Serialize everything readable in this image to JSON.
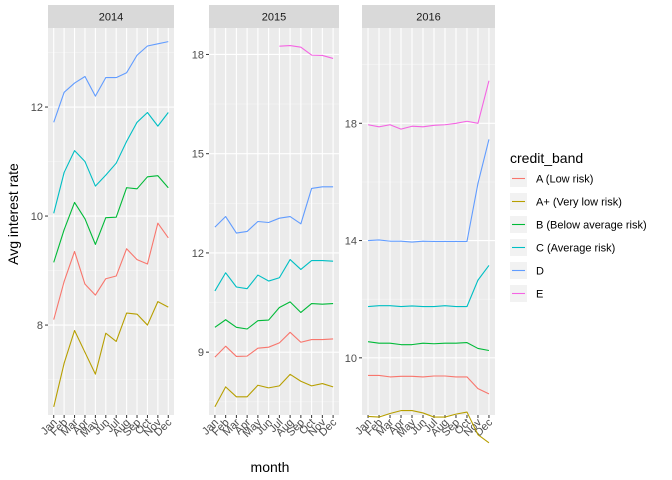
{
  "chart_data": {
    "type": "line",
    "xlabel": "month",
    "ylabel": "Avg interest rate",
    "categories": [
      "Jan",
      "Feb",
      "Mar",
      "Apr",
      "May",
      "Jun",
      "Jul",
      "Aug",
      "Sep",
      "Oct",
      "Nov",
      "Dec"
    ],
    "legend": {
      "title": "credit_band",
      "placement": "right"
    },
    "series_meta": [
      {
        "key": "A",
        "name": "A (Low risk)",
        "color": "#F8766D"
      },
      {
        "key": "A+",
        "name": "A+ (Very low risk)",
        "color": "#B79F00"
      },
      {
        "key": "B",
        "name": "B (Below average risk)",
        "color": "#00BA38"
      },
      {
        "key": "C",
        "name": "C (Average risk)",
        "color": "#00BFC4"
      },
      {
        "key": "D",
        "name": "D",
        "color": "#619CFF"
      },
      {
        "key": "E",
        "name": "E",
        "color": "#F564E3"
      }
    ],
    "panels": [
      {
        "label": "2014",
        "ylim": [
          6.35,
          13.45
        ],
        "yticks": [
          8,
          10,
          12
        ],
        "series": [
          {
            "key": "A+",
            "values": [
              6.5,
              7.3,
              7.9,
              7.5,
              7.1,
              7.85,
              7.7,
              8.22,
              8.2,
              8.0,
              8.43,
              8.33
            ]
          },
          {
            "key": "A",
            "values": [
              8.1,
              8.8,
              9.35,
              8.75,
              8.55,
              8.85,
              8.9,
              9.4,
              9.2,
              9.12,
              9.87,
              9.6
            ]
          },
          {
            "key": "B",
            "values": [
              9.15,
              9.75,
              10.25,
              9.95,
              9.48,
              9.97,
              9.98,
              10.52,
              10.5,
              10.72,
              10.74,
              10.52
            ]
          },
          {
            "key": "C",
            "values": [
              10.05,
              10.8,
              11.2,
              11.0,
              10.55,
              10.75,
              10.97,
              11.37,
              11.72,
              11.9,
              11.65,
              11.9
            ]
          },
          {
            "key": "D",
            "values": [
              11.72,
              12.27,
              12.44,
              12.56,
              12.2,
              12.54,
              12.54,
              12.63,
              12.95,
              13.12,
              13.16,
              13.2
            ]
          }
        ]
      },
      {
        "label": "2015",
        "ylim": [
          7.1,
          18.8
        ],
        "yticks": [
          9,
          12,
          15,
          18
        ],
        "series": [
          {
            "key": "A+",
            "values": [
              7.35,
              7.95,
              7.65,
              7.65,
              8.0,
              7.92,
              7.98,
              8.33,
              8.12,
              7.98,
              8.05,
              7.95
            ]
          },
          {
            "key": "A",
            "values": [
              8.85,
              9.18,
              8.87,
              8.88,
              9.12,
              9.15,
              9.28,
              9.6,
              9.3,
              9.38,
              9.38,
              9.4
            ]
          },
          {
            "key": "B",
            "values": [
              9.75,
              9.98,
              9.75,
              9.7,
              9.95,
              9.97,
              10.35,
              10.52,
              10.2,
              10.47,
              10.45,
              10.47
            ]
          },
          {
            "key": "C",
            "values": [
              10.85,
              11.4,
              10.97,
              10.92,
              11.33,
              11.15,
              11.25,
              11.8,
              11.5,
              11.77,
              11.77,
              11.75
            ]
          },
          {
            "key": "D",
            "values": [
              12.78,
              13.1,
              12.6,
              12.65,
              12.95,
              12.92,
              13.05,
              13.1,
              12.88,
              13.95,
              14.0,
              14.0
            ]
          },
          {
            "key": "E",
            "values": [
              null,
              null,
              null,
              null,
              null,
              null,
              18.25,
              18.27,
              18.22,
              17.98,
              17.97,
              17.88
            ]
          }
        ]
      },
      {
        "label": "2016",
        "ylim": [
          8.05,
          21.25
        ],
        "yticks": [
          10,
          14,
          18
        ],
        "series": [
          {
            "key": "A+",
            "values": [
              8.0,
              7.98,
              8.1,
              8.2,
              8.2,
              8.12,
              7.98,
              7.98,
              8.08,
              8.15,
              7.38,
              7.1
            ]
          },
          {
            "key": "A",
            "values": [
              9.4,
              9.4,
              9.35,
              9.37,
              9.37,
              9.35,
              9.38,
              9.38,
              9.35,
              9.35,
              8.95,
              8.77
            ]
          },
          {
            "key": "B",
            "values": [
              10.55,
              10.5,
              10.5,
              10.45,
              10.45,
              10.5,
              10.48,
              10.5,
              10.5,
              10.52,
              10.32,
              10.25
            ]
          },
          {
            "key": "C",
            "values": [
              11.75,
              11.78,
              11.78,
              11.75,
              11.77,
              11.75,
              11.75,
              11.78,
              11.75,
              11.75,
              12.65,
              13.15
            ]
          },
          {
            "key": "D",
            "values": [
              14.0,
              14.02,
              13.98,
              13.98,
              13.95,
              13.98,
              13.97,
              13.97,
              13.97,
              13.97,
              15.95,
              17.45
            ]
          },
          {
            "key": "E",
            "values": [
              17.95,
              17.88,
              17.95,
              17.8,
              17.9,
              17.88,
              17.93,
              17.95,
              18.0,
              18.07,
              18.0,
              19.45
            ]
          }
        ]
      }
    ]
  }
}
